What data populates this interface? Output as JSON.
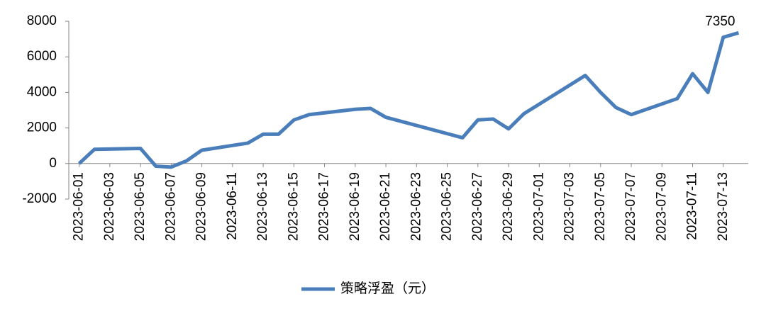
{
  "chart_data": {
    "type": "line",
    "x": [
      "2023-06-01",
      "2023-06-02",
      "2023-06-05",
      "2023-06-06",
      "2023-06-07",
      "2023-06-08",
      "2023-06-09",
      "2023-06-12",
      "2023-06-13",
      "2023-06-14",
      "2023-06-15",
      "2023-06-16",
      "2023-06-19",
      "2023-06-20",
      "2023-06-21",
      "2023-06-26",
      "2023-06-27",
      "2023-06-28",
      "2023-06-29",
      "2023-06-30",
      "2023-07-04",
      "2023-07-05",
      "2023-07-06",
      "2023-07-07",
      "2023-07-10",
      "2023-07-11",
      "2023-07-12",
      "2023-07-13",
      "2023-07-14"
    ],
    "series": [
      {
        "name": "策略浮盈（元）",
        "color": "#4a7ebb",
        "values": [
          0,
          800,
          850,
          -150,
          -200,
          150,
          750,
          1150,
          1650,
          1650,
          2450,
          2750,
          3050,
          3100,
          2600,
          1450,
          2450,
          2500,
          1950,
          2800,
          4950,
          4000,
          3150,
          2750,
          3650,
          5050,
          4000,
          7100,
          7350
        ]
      }
    ],
    "xlim": [
      "2023-05-31",
      "2023-07-15"
    ],
    "xticks": [
      "2023-06-01",
      "2023-06-03",
      "2023-06-05",
      "2023-06-07",
      "2023-06-09",
      "2023-06-11",
      "2023-06-13",
      "2023-06-15",
      "2023-06-17",
      "2023-06-19",
      "2023-06-21",
      "2023-06-23",
      "2023-06-25",
      "2023-06-27",
      "2023-06-29",
      "2023-07-01",
      "2023-07-03",
      "2023-07-05",
      "2023-07-07",
      "2023-07-09",
      "2023-07-11",
      "2023-07-13"
    ],
    "ylim": [
      -2000,
      8000
    ],
    "yticks": [
      -2000,
      0,
      2000,
      4000,
      6000,
      8000
    ],
    "grid": false,
    "legend": "bottom"
  }
}
